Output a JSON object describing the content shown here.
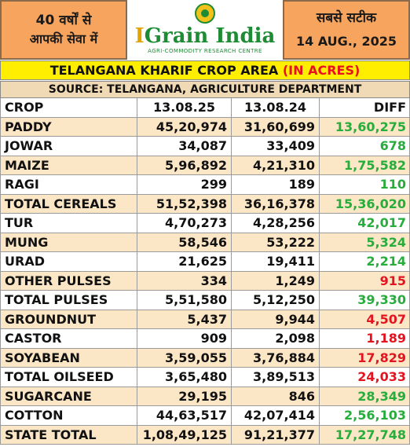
{
  "header": {
    "left_line1": "40 वर्षों से",
    "left_line2": "आपकी सेवा में",
    "brand_prefix": "I",
    "brand_name": "Grain India",
    "tagline": "AGRI-COMMODITY RESEARCH CENTRE",
    "right_line1": "सबसे सटीक",
    "date": "14 AUG., 2025"
  },
  "title": {
    "main": "TELANGANA KHARIF CROP AREA",
    "unit": "(IN ACRES)",
    "source": "SOURCE: TELANGANA, AGRICULTURE DEPARTMENT"
  },
  "table": {
    "columns": [
      "CROP",
      "13.08.25",
      "13.08.24",
      "DIFF"
    ],
    "rows": [
      {
        "crop": "PADDY",
        "y2025": "45,20,974",
        "y2024": "31,60,699",
        "diff": "13,60,275",
        "sign": "pos"
      },
      {
        "crop": "JOWAR",
        "y2025": "34,087",
        "y2024": "33,409",
        "diff": "678",
        "sign": "pos"
      },
      {
        "crop": "MAIZE",
        "y2025": "5,96,892",
        "y2024": "4,21,310",
        "diff": "1,75,582",
        "sign": "pos"
      },
      {
        "crop": "RAGI",
        "y2025": "299",
        "y2024": "189",
        "diff": "110",
        "sign": "pos"
      },
      {
        "crop": "TOTAL CEREALS",
        "y2025": "51,52,398",
        "y2024": "36,16,378",
        "diff": "15,36,020",
        "sign": "pos"
      },
      {
        "crop": "TUR",
        "y2025": "4,70,273",
        "y2024": "4,28,256",
        "diff": "42,017",
        "sign": "pos"
      },
      {
        "crop": "MUNG",
        "y2025": "58,546",
        "y2024": "53,222",
        "diff": "5,324",
        "sign": "pos"
      },
      {
        "crop": "URAD",
        "y2025": "21,625",
        "y2024": "19,411",
        "diff": "2,214",
        "sign": "pos"
      },
      {
        "crop": "OTHER PULSES",
        "y2025": "334",
        "y2024": "1,249",
        "diff": "915",
        "sign": "neg"
      },
      {
        "crop": "TOTAL PULSES",
        "y2025": "5,51,580",
        "y2024": "5,12,250",
        "diff": "39,330",
        "sign": "pos"
      },
      {
        "crop": "GROUNDNUT",
        "y2025": "5,437",
        "y2024": "9,944",
        "diff": "4,507",
        "sign": "neg"
      },
      {
        "crop": "CASTOR",
        "y2025": "909",
        "y2024": "2,098",
        "diff": "1,189",
        "sign": "neg"
      },
      {
        "crop": "SOYABEAN",
        "y2025": "3,59,055",
        "y2024": "3,76,884",
        "diff": "17,829",
        "sign": "neg"
      },
      {
        "crop": "TOTAL OILSEED",
        "y2025": "3,65,480",
        "y2024": "3,89,513",
        "diff": "24,033",
        "sign": "neg"
      },
      {
        "crop": "SUGARCANE",
        "y2025": "29,195",
        "y2024": "846",
        "diff": "28,349",
        "sign": "pos"
      },
      {
        "crop": "COTTON",
        "y2025": "44,63,517",
        "y2024": "42,07,414",
        "diff": "2,56,103",
        "sign": "pos"
      },
      {
        "crop": "STATE TOTAL",
        "y2025": "1,08,49,125",
        "y2024": "91,21,377",
        "diff": "17,27,748",
        "sign": "pos"
      }
    ]
  },
  "colors": {
    "header_orange": "#f7a55e",
    "title_yellow": "#ffee00",
    "positive_green": "#27ad3c",
    "negative_red": "#e3141f",
    "row_band": "#fbe6c6"
  }
}
